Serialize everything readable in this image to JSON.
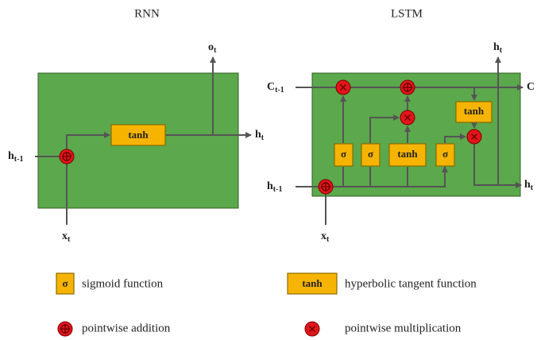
{
  "titles": {
    "rnn": "RNN",
    "lstm": "LSTM"
  },
  "rnn": {
    "input_h": {
      "base": "h",
      "sub": "t-1"
    },
    "input_x": {
      "base": "x",
      "sub": "t"
    },
    "output_o": {
      "base": "o",
      "sub": "t"
    },
    "output_h": {
      "base": "h",
      "sub": "t"
    },
    "tanh": "tanh"
  },
  "lstm": {
    "input_c": {
      "base": "C",
      "sub": "t-1"
    },
    "output_c": "C",
    "output_h_top": {
      "base": "h",
      "sub": "t"
    },
    "output_h_right": {
      "base": "h",
      "sub": "t"
    },
    "input_h": {
      "base": "h",
      "sub": "t-1"
    },
    "input_x": {
      "base": "x",
      "sub": "t"
    },
    "gates": [
      "σ",
      "σ",
      "tanh",
      "σ"
    ],
    "cell_tanh": "tanh"
  },
  "legend": {
    "sigmoid_symbol": "σ",
    "sigmoid_text": "sigmoid function",
    "tanh_symbol": "tanh",
    "tanh_text": "hyperbolic tangent function",
    "addition_text": "pointwise addition",
    "multiplication_text": "pointwise multiplication"
  }
}
